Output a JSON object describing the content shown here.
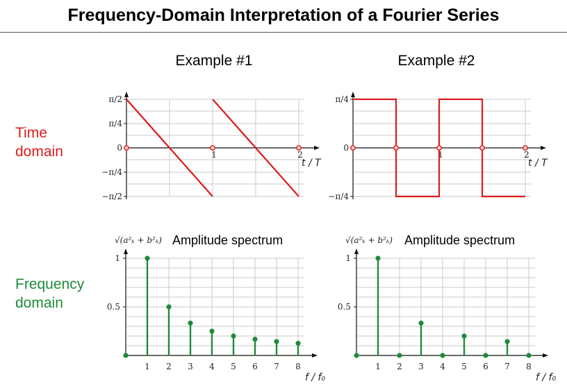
{
  "title": "Frequency-Domain Interpretation of a Fourier Series",
  "columns": [
    "Example #1",
    "Example #2"
  ],
  "row_labels": {
    "time": [
      "Time",
      "domain"
    ],
    "frequency": [
      "Frequency",
      "domain"
    ]
  },
  "colors": {
    "time": "#dd1b1b",
    "frequency": "#1f8a3a",
    "grid": "#c8c8c8",
    "axis": "#111111"
  },
  "time_plots": [
    {
      "x_label": "t / T",
      "x_ticks": [
        "1",
        "2"
      ],
      "y_ticks": [
        "π/2",
        "π/4",
        "0",
        "−π/4",
        "−π/2"
      ],
      "y_range": [
        -1.5708,
        1.5708
      ],
      "x_range": [
        0,
        2
      ],
      "waveform": "sawtooth",
      "segments": [
        [
          [
            0,
            1.5708
          ],
          [
            1,
            -1.5708
          ]
        ],
        [
          [
            1,
            1.5708
          ],
          [
            2,
            -1.5708
          ]
        ]
      ],
      "markers": [
        [
          0,
          0
        ],
        [
          1,
          0
        ],
        [
          2,
          0
        ]
      ]
    },
    {
      "x_label": "t / T",
      "x_ticks": [
        "1",
        "2"
      ],
      "y_ticks": [
        "π/4",
        "0",
        "−π/4"
      ],
      "y_range": [
        -0.7854,
        0.7854
      ],
      "x_range": [
        0,
        2
      ],
      "waveform": "square",
      "segments": [
        [
          [
            0,
            0.7854
          ],
          [
            0.5,
            0.7854
          ],
          [
            0.5,
            -0.7854
          ],
          [
            1,
            -0.7854
          ],
          [
            1,
            0.7854
          ],
          [
            1.5,
            0.7854
          ],
          [
            1.5,
            -0.7854
          ],
          [
            2,
            -0.7854
          ]
        ]
      ],
      "markers": [
        [
          0,
          0
        ],
        [
          0.5,
          0
        ],
        [
          1,
          0
        ],
        [
          1.5,
          0
        ],
        [
          2,
          0
        ]
      ]
    }
  ],
  "freq_plots": [
    {
      "title": "Amplitude spectrum",
      "y_label": "√(a²ₖ + b²ₖ)",
      "x_label": "f / f₀",
      "x_ticks": [
        "1",
        "2",
        "3",
        "4",
        "5",
        "6",
        "7",
        "8"
      ],
      "y_ticks": [
        "1",
        "0.5"
      ],
      "y_range": [
        0,
        1
      ],
      "values": [
        0,
        1,
        0.5,
        0.333,
        0.25,
        0.2,
        0.167,
        0.143,
        0.125
      ]
    },
    {
      "title": "Amplitude spectrum",
      "y_label": "√(a²ₖ + b²ₖ)",
      "x_label": "f / f₀",
      "x_ticks": [
        "1",
        "2",
        "3",
        "4",
        "5",
        "6",
        "7",
        "8"
      ],
      "y_ticks": [
        "1",
        "0.5"
      ],
      "y_range": [
        0,
        1
      ],
      "values": [
        0,
        1,
        0,
        0.333,
        0,
        0.2,
        0,
        0.143,
        0
      ]
    }
  ]
}
